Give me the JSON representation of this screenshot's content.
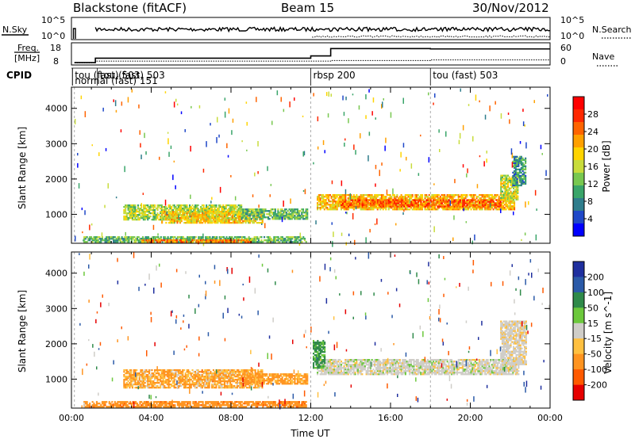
{
  "header": {
    "station": "Blackstone (fitACF)",
    "beam": "Beam 15",
    "date": "30/Nov/2012"
  },
  "nsky_panel": {
    "left_label": "N.Sky",
    "right_label": "N.Search",
    "left_ticks": [
      "10^5",
      "10^0"
    ],
    "right_ticks": [
      "10^5",
      "10^0"
    ]
  },
  "freq_panel": {
    "left_label_1": "Freq.",
    "left_label_2": "[MHz]",
    "right_label": "Nave",
    "left_ticks": [
      "18",
      "8"
    ],
    "right_ticks": [
      "60",
      "0"
    ],
    "freq_steps": [
      [
        0.15,
        8.5
      ],
      [
        1.2,
        11.0
      ],
      [
        12.0,
        12.3
      ],
      [
        13.0,
        16.5
      ],
      [
        18.0,
        16.3
      ],
      [
        24.0,
        16.3
      ]
    ],
    "nave_steps": [
      [
        0.15,
        2
      ],
      [
        1.2,
        8
      ],
      [
        12.0,
        8
      ],
      [
        13.0,
        10
      ],
      [
        18.0,
        12
      ],
      [
        24.0,
        12
      ]
    ]
  },
  "cpid_panel": {
    "label": "CPID",
    "entries": [
      {
        "text": "tou (fast) 503",
        "start": 0.05
      },
      {
        "text": "normal (fast) 151",
        "start": 0.05
      },
      {
        "text": "tou (fast) 503",
        "start": 1.3
      },
      {
        "text": "rbsp 200",
        "start": 12.0
      },
      {
        "text": "tou (fast) 503",
        "start": 18.0
      }
    ]
  },
  "chart_data": [
    {
      "type": "heatmap",
      "name": "power",
      "ylabel": "Slant Range [km]",
      "yticks": [
        "1000",
        "2000",
        "3000",
        "4000"
      ],
      "ylim": [
        180,
        4600
      ],
      "xlim": [
        0,
        24
      ],
      "colorbar_label": "Power [dB]",
      "colorbar_ticks": [
        "4",
        "8",
        "12",
        "16",
        "20",
        "24",
        "28"
      ],
      "colorbar_range": [
        0,
        32
      ],
      "colors": [
        "#0000ff",
        "#1f48c8",
        "#2f7d8c",
        "#3aa56a",
        "#78c850",
        "#c8dc3c",
        "#ffd400",
        "#ffa000",
        "#ff6400",
        "#ff2800",
        "#ff0000"
      ],
      "bands": [
        {
          "t0": 2.6,
          "t1": 8.5,
          "r0": 830,
          "r1": 1260,
          "v": 15
        },
        {
          "t0": 4.5,
          "t1": 9.6,
          "r0": 740,
          "r1": 1100,
          "v": 19
        },
        {
          "t0": 8.5,
          "t1": 11.8,
          "r0": 850,
          "r1": 1150,
          "v": 12
        },
        {
          "t0": 12.3,
          "t1": 22.2,
          "r0": 1120,
          "r1": 1560,
          "v": 20
        },
        {
          "t0": 13.5,
          "t1": 21.5,
          "r0": 1200,
          "r1": 1400,
          "v": 25
        },
        {
          "t0": 21.5,
          "t1": 22.4,
          "r0": 1400,
          "r1": 2100,
          "v": 16
        },
        {
          "t0": 22.1,
          "t1": 22.8,
          "r0": 1800,
          "r1": 2650,
          "v": 9
        },
        {
          "t0": 0.6,
          "t1": 11.8,
          "r0": 200,
          "r1": 360,
          "v": 12
        },
        {
          "t0": 3.5,
          "t1": 9.0,
          "r0": 200,
          "r1": 260,
          "v": 24
        }
      ]
    },
    {
      "type": "heatmap",
      "name": "velocity",
      "ylabel": "Slant Range [km]",
      "yticks": [
        "1000",
        "2000",
        "3000",
        "4000"
      ],
      "ylim": [
        180,
        4600
      ],
      "xlim": [
        0,
        24
      ],
      "xlabel": "Time UT",
      "xticks": [
        "00:00",
        "04:00",
        "08:00",
        "12:00",
        "16:00",
        "20:00",
        "00:00"
      ],
      "colorbar_label": "Velocity [m s^-1]",
      "colorbar_ticks": [
        "200",
        "100",
        "50",
        "15",
        "-15",
        "-50",
        "-100",
        "-200"
      ],
      "colors": [
        "#1f2f9e",
        "#2b5aa8",
        "#2f8a4a",
        "#6cc83c",
        "#cfcdc8",
        "#ffc040",
        "#ff9420",
        "#ff5a00",
        "#e60000"
      ],
      "bands": [
        {
          "t0": 2.6,
          "t1": 9.6,
          "r0": 740,
          "r1": 1260,
          "v": -30
        },
        {
          "t0": 8.5,
          "t1": 11.8,
          "r0": 850,
          "r1": 1150,
          "v": -40
        },
        {
          "t0": 12.3,
          "t1": 22.4,
          "r0": 1120,
          "r1": 1560,
          "v": 0
        },
        {
          "t0": 21.5,
          "t1": 22.8,
          "r0": 1400,
          "r1": 2650,
          "v": -5
        },
        {
          "t0": 0.6,
          "t1": 11.8,
          "r0": 200,
          "r1": 360,
          "v": -60
        },
        {
          "t0": 12.1,
          "t1": 12.7,
          "r0": 1300,
          "r1": 2100,
          "v": 40
        }
      ]
    }
  ]
}
